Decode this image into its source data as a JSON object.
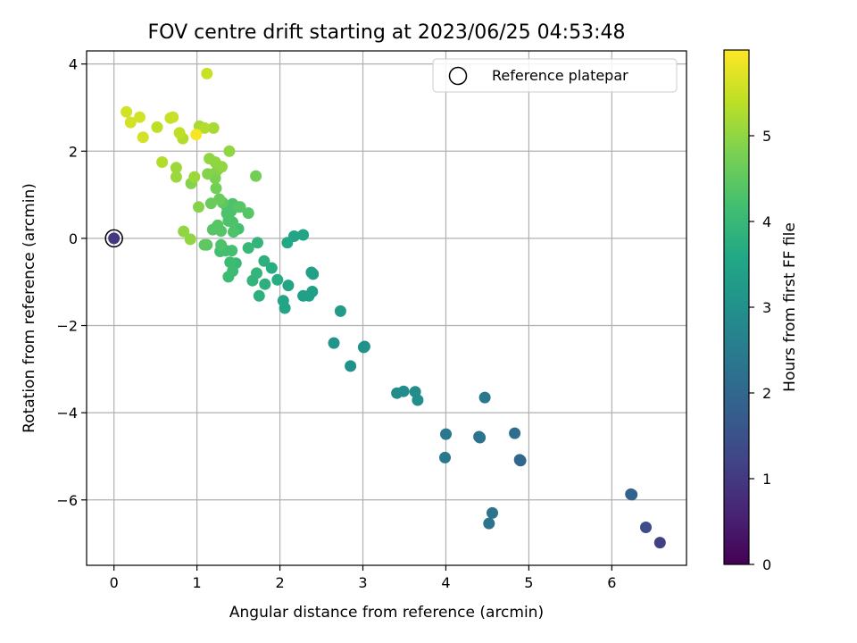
{
  "chart_data": {
    "type": "scatter",
    "title": "FOV centre drift starting at 2023/06/25 04:53:48",
    "xlabel": "Angular distance from reference (arcmin)",
    "ylabel": "Rotation from reference (arcmin)",
    "xlim": [
      -0.33,
      6.9
    ],
    "ylim": [
      -7.5,
      4.3
    ],
    "xticks": [
      0,
      1,
      2,
      3,
      4,
      5,
      6
    ],
    "yticks": [
      -6,
      -4,
      -2,
      0,
      2,
      4
    ],
    "xtick_labels": [
      "0",
      "1",
      "2",
      "3",
      "4",
      "5",
      "6"
    ],
    "ytick_labels": [
      "−6",
      "−4",
      "−2",
      "0",
      "2",
      "4"
    ],
    "grid": true,
    "legend": {
      "position": "top-right",
      "entries": [
        "Reference platepar"
      ]
    },
    "reference_point": {
      "x": 0.0,
      "y": 0.0,
      "c": 1.0
    },
    "colorbar": {
      "label": "Hours from first FF file",
      "min": 0,
      "max": 6.0,
      "ticks": [
        0,
        1,
        2,
        3,
        4,
        5
      ],
      "tick_labels": [
        "0",
        "1",
        "2",
        "3",
        "4",
        "5"
      ],
      "colormap": "viridis"
    },
    "points": [
      {
        "x": 6.58,
        "y": -6.98,
        "c": 1.1
      },
      {
        "x": 6.41,
        "y": -6.63,
        "c": 1.4
      },
      {
        "x": 6.23,
        "y": -5.87,
        "c": 1.9
      },
      {
        "x": 6.24,
        "y": -5.88,
        "c": 1.9
      },
      {
        "x": 4.89,
        "y": -5.08,
        "c": 2.0
      },
      {
        "x": 4.9,
        "y": -5.1,
        "c": 2.0
      },
      {
        "x": 4.83,
        "y": -4.47,
        "c": 2.1
      },
      {
        "x": 4.56,
        "y": -6.3,
        "c": 2.3
      },
      {
        "x": 4.52,
        "y": -6.54,
        "c": 2.3
      },
      {
        "x": 4.47,
        "y": -3.65,
        "c": 2.4
      },
      {
        "x": 4.4,
        "y": -4.55,
        "c": 2.3
      },
      {
        "x": 4.41,
        "y": -4.57,
        "c": 2.3
      },
      {
        "x": 4.0,
        "y": -4.49,
        "c": 2.4
      },
      {
        "x": 3.99,
        "y": -5.03,
        "c": 2.4
      },
      {
        "x": 3.66,
        "y": -3.71,
        "c": 2.9
      },
      {
        "x": 3.63,
        "y": -3.52,
        "c": 2.9
      },
      {
        "x": 3.49,
        "y": -3.51,
        "c": 2.9
      },
      {
        "x": 3.41,
        "y": -3.55,
        "c": 2.9
      },
      {
        "x": 3.01,
        "y": -2.5,
        "c": 3.0
      },
      {
        "x": 3.02,
        "y": -2.48,
        "c": 3.0
      },
      {
        "x": 2.85,
        "y": -2.93,
        "c": 3.0
      },
      {
        "x": 2.65,
        "y": -2.4,
        "c": 3.1
      },
      {
        "x": 2.73,
        "y": -1.67,
        "c": 3.3
      },
      {
        "x": 2.38,
        "y": -0.78,
        "c": 3.4
      },
      {
        "x": 2.4,
        "y": -0.82,
        "c": 3.4
      },
      {
        "x": 2.39,
        "y": -1.22,
        "c": 3.4
      },
      {
        "x": 2.35,
        "y": -1.32,
        "c": 3.4
      },
      {
        "x": 2.28,
        "y": -1.32,
        "c": 3.4
      },
      {
        "x": 2.1,
        "y": -1.08,
        "c": 3.5
      },
      {
        "x": 2.06,
        "y": -1.6,
        "c": 3.5
      },
      {
        "x": 2.04,
        "y": -1.43,
        "c": 3.5
      },
      {
        "x": 2.28,
        "y": 0.08,
        "c": 3.5
      },
      {
        "x": 2.17,
        "y": 0.05,
        "c": 3.5
      },
      {
        "x": 2.09,
        "y": -0.1,
        "c": 3.6
      },
      {
        "x": 1.97,
        "y": -0.95,
        "c": 3.7
      },
      {
        "x": 1.9,
        "y": -0.68,
        "c": 3.7
      },
      {
        "x": 1.81,
        "y": -0.52,
        "c": 3.8
      },
      {
        "x": 1.82,
        "y": -1.05,
        "c": 3.8
      },
      {
        "x": 1.75,
        "y": -1.32,
        "c": 3.8
      },
      {
        "x": 1.72,
        "y": -0.8,
        "c": 3.9
      },
      {
        "x": 1.73,
        "y": -0.1,
        "c": 3.9
      },
      {
        "x": 1.67,
        "y": -0.97,
        "c": 3.9
      },
      {
        "x": 1.62,
        "y": -0.22,
        "c": 4.0
      },
      {
        "x": 1.47,
        "y": -0.57,
        "c": 4.0
      },
      {
        "x": 1.43,
        "y": -0.75,
        "c": 4.1
      },
      {
        "x": 1.38,
        "y": -0.88,
        "c": 4.1
      },
      {
        "x": 1.4,
        "y": -0.55,
        "c": 4.1
      },
      {
        "x": 1.35,
        "y": -0.28,
        "c": 4.2
      },
      {
        "x": 1.28,
        "y": -0.3,
        "c": 4.2
      },
      {
        "x": 1.42,
        "y": -0.28,
        "c": 4.2
      },
      {
        "x": 1.5,
        "y": 0.22,
        "c": 4.2
      },
      {
        "x": 1.44,
        "y": 0.15,
        "c": 4.3
      },
      {
        "x": 1.38,
        "y": 0.4,
        "c": 4.3
      },
      {
        "x": 1.43,
        "y": 0.37,
        "c": 4.3
      },
      {
        "x": 1.29,
        "y": 0.17,
        "c": 4.4
      },
      {
        "x": 1.25,
        "y": 0.3,
        "c": 4.4
      },
      {
        "x": 1.19,
        "y": 0.2,
        "c": 4.4
      },
      {
        "x": 1.29,
        "y": -0.15,
        "c": 4.3
      },
      {
        "x": 1.12,
        "y": -0.15,
        "c": 4.4
      },
      {
        "x": 1.09,
        "y": -0.15,
        "c": 4.5
      },
      {
        "x": 1.36,
        "y": 0.72,
        "c": 4.3
      },
      {
        "x": 1.41,
        "y": 0.62,
        "c": 4.3
      },
      {
        "x": 1.43,
        "y": 0.79,
        "c": 4.3
      },
      {
        "x": 1.5,
        "y": 0.72,
        "c": 4.4
      },
      {
        "x": 1.52,
        "y": 0.72,
        "c": 4.4
      },
      {
        "x": 1.36,
        "y": 0.57,
        "c": 4.3
      },
      {
        "x": 1.62,
        "y": 0.58,
        "c": 4.4
      },
      {
        "x": 1.31,
        "y": 0.82,
        "c": 4.5
      },
      {
        "x": 1.27,
        "y": 0.9,
        "c": 4.6
      },
      {
        "x": 1.17,
        "y": 0.8,
        "c": 4.6
      },
      {
        "x": 1.23,
        "y": 1.15,
        "c": 4.7
      },
      {
        "x": 1.22,
        "y": 1.38,
        "c": 4.8
      },
      {
        "x": 1.22,
        "y": 1.5,
        "c": 4.8
      },
      {
        "x": 1.13,
        "y": 1.48,
        "c": 4.9
      },
      {
        "x": 1.02,
        "y": 0.72,
        "c": 4.9
      },
      {
        "x": 0.93,
        "y": 1.26,
        "c": 4.9
      },
      {
        "x": 0.92,
        "y": -0.02,
        "c": 5.0
      },
      {
        "x": 0.84,
        "y": 0.16,
        "c": 5.0
      },
      {
        "x": 1.71,
        "y": 1.43,
        "c": 4.7
      },
      {
        "x": 1.25,
        "y": 1.58,
        "c": 4.9
      },
      {
        "x": 1.22,
        "y": 1.75,
        "c": 5.0
      },
      {
        "x": 1.3,
        "y": 1.64,
        "c": 5.0
      },
      {
        "x": 1.15,
        "y": 1.83,
        "c": 5.0
      },
      {
        "x": 1.39,
        "y": 2.0,
        "c": 5.0
      },
      {
        "x": 0.75,
        "y": 1.62,
        "c": 5.1
      },
      {
        "x": 0.75,
        "y": 1.41,
        "c": 5.1
      },
      {
        "x": 0.97,
        "y": 1.41,
        "c": 5.1
      },
      {
        "x": 0.58,
        "y": 1.75,
        "c": 5.3
      },
      {
        "x": 1.2,
        "y": 2.53,
        "c": 5.2
      },
      {
        "x": 1.03,
        "y": 2.57,
        "c": 5.2
      },
      {
        "x": 1.09,
        "y": 2.53,
        "c": 5.3
      },
      {
        "x": 0.83,
        "y": 2.29,
        "c": 5.3
      },
      {
        "x": 0.79,
        "y": 2.42,
        "c": 5.4
      },
      {
        "x": 0.52,
        "y": 2.55,
        "c": 5.4
      },
      {
        "x": 0.68,
        "y": 2.76,
        "c": 5.5
      },
      {
        "x": 0.71,
        "y": 2.78,
        "c": 5.5
      },
      {
        "x": 0.35,
        "y": 2.32,
        "c": 5.6
      },
      {
        "x": 0.31,
        "y": 2.78,
        "c": 5.6
      },
      {
        "x": 0.2,
        "y": 2.66,
        "c": 5.6
      },
      {
        "x": 0.15,
        "y": 2.9,
        "c": 5.6
      },
      {
        "x": 1.12,
        "y": 3.78,
        "c": 5.5
      },
      {
        "x": 0.99,
        "y": 2.38,
        "c": 5.95
      }
    ]
  }
}
